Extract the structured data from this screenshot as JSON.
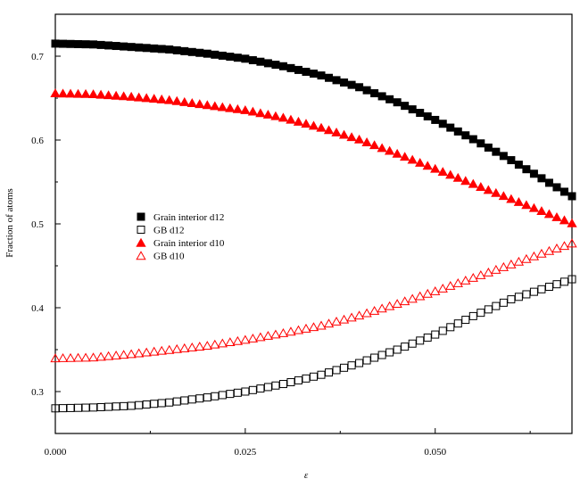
{
  "chart_data": {
    "type": "scatter",
    "xlabel": "ε",
    "ylabel": "Fraction of atoms",
    "xlim": [
      0.0,
      0.068
    ],
    "ylim": [
      0.25,
      0.75
    ],
    "x_ticks": [
      0.0,
      0.025,
      0.05
    ],
    "x_tick_labels": [
      "0.000",
      "0.025",
      "0.050"
    ],
    "y_ticks": [
      0.3,
      0.4,
      0.5,
      0.6,
      0.7
    ],
    "y_tick_labels": [
      "0.3",
      "0.4",
      "0.5",
      "0.6",
      "0.7"
    ],
    "grid": false,
    "legend_position": "center-left",
    "x_start": 0.0,
    "x_step": 0.001,
    "n_points": 69,
    "series": [
      {
        "name": "Grain interior d12",
        "marker": "square",
        "filled": true,
        "color": "#000000",
        "anchors_x": [
          0.0,
          0.005,
          0.01,
          0.015,
          0.02,
          0.025,
          0.03,
          0.035,
          0.04,
          0.045,
          0.05,
          0.055,
          0.06,
          0.065,
          0.068
        ],
        "anchors_y": [
          0.715,
          0.714,
          0.711,
          0.708,
          0.703,
          0.697,
          0.688,
          0.677,
          0.663,
          0.645,
          0.624,
          0.601,
          0.576,
          0.549,
          0.533
        ]
      },
      {
        "name": "GB d12",
        "marker": "square",
        "filled": false,
        "color": "#000000",
        "anchors_x": [
          0.0,
          0.005,
          0.01,
          0.015,
          0.02,
          0.025,
          0.03,
          0.035,
          0.04,
          0.045,
          0.05,
          0.055,
          0.06,
          0.065,
          0.068
        ],
        "anchors_y": [
          0.28,
          0.281,
          0.283,
          0.287,
          0.293,
          0.3,
          0.309,
          0.32,
          0.334,
          0.35,
          0.368,
          0.39,
          0.41,
          0.425,
          0.434
        ]
      },
      {
        "name": "Grain interior d10",
        "marker": "triangle",
        "filled": true,
        "color": "#ff0000",
        "anchors_x": [
          0.0,
          0.005,
          0.01,
          0.015,
          0.02,
          0.025,
          0.03,
          0.035,
          0.04,
          0.045,
          0.05,
          0.055,
          0.06,
          0.065,
          0.068
        ],
        "anchors_y": [
          0.656,
          0.655,
          0.652,
          0.648,
          0.642,
          0.636,
          0.627,
          0.615,
          0.601,
          0.584,
          0.566,
          0.548,
          0.53,
          0.512,
          0.501
        ]
      },
      {
        "name": "GB d10",
        "marker": "triangle",
        "filled": false,
        "color": "#ff0000",
        "anchors_x": [
          0.0,
          0.005,
          0.01,
          0.015,
          0.02,
          0.025,
          0.03,
          0.035,
          0.04,
          0.045,
          0.05,
          0.055,
          0.06,
          0.065,
          0.068
        ],
        "anchors_y": [
          0.34,
          0.341,
          0.345,
          0.35,
          0.355,
          0.362,
          0.37,
          0.379,
          0.391,
          0.405,
          0.42,
          0.436,
          0.452,
          0.468,
          0.477
        ]
      }
    ]
  }
}
